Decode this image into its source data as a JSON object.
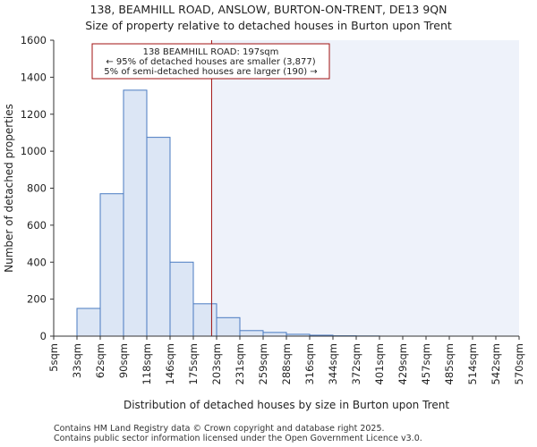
{
  "header": {
    "title": "138, BEAMHILL ROAD, ANSLOW, BURTON-ON-TRENT, DE13 9QN",
    "subtitle": "Size of property relative to detached houses in Burton upon Trent"
  },
  "footer": {
    "line1": "Contains HM Land Registry data © Crown copyright and database right 2025.",
    "line2": "Contains public sector information licensed under the Open Government Licence v3.0."
  },
  "chart_data": {
    "type": "bar",
    "title": "138, BEAMHILL ROAD, ANSLOW, BURTON-ON-TRENT, DE13 9QN",
    "subtitle": "Size of property relative to detached houses in Burton upon Trent",
    "xlabel": "Distribution of detached houses by size in Burton upon Trent",
    "ylabel": "Number of detached properties",
    "bin_edges": [
      5,
      33,
      62,
      90,
      118,
      146,
      175,
      203,
      231,
      259,
      288,
      316,
      344,
      372,
      401,
      429,
      457,
      485,
      514,
      542,
      570
    ],
    "tick_labels": [
      "5sqm",
      "33sqm",
      "62sqm",
      "90sqm",
      "118sqm",
      "146sqm",
      "175sqm",
      "203sqm",
      "231sqm",
      "259sqm",
      "288sqm",
      "316sqm",
      "344sqm",
      "372sqm",
      "401sqm",
      "429sqm",
      "457sqm",
      "485sqm",
      "514sqm",
      "542sqm",
      "570sqm"
    ],
    "values": [
      0,
      150,
      770,
      1330,
      1075,
      400,
      175,
      100,
      30,
      20,
      10,
      5,
      2,
      1,
      0,
      0,
      0,
      0,
      0,
      0
    ],
    "ylim": [
      0,
      1600
    ],
    "yticks": [
      0,
      200,
      400,
      600,
      800,
      1000,
      1200,
      1400,
      1600
    ],
    "subject_sqm": 197,
    "annotation": {
      "line1": "138 BEAMHILL ROAD: 197sqm",
      "line2": "← 95% of detached houses are smaller (3,877)",
      "line3": "5% of semi-detached houses are larger (190) →"
    },
    "colors": {
      "bar_fill": "#dce6f5",
      "bar_stroke": "#4a7bc1",
      "shade": "#eef2fa",
      "marker": "#a01010"
    }
  }
}
